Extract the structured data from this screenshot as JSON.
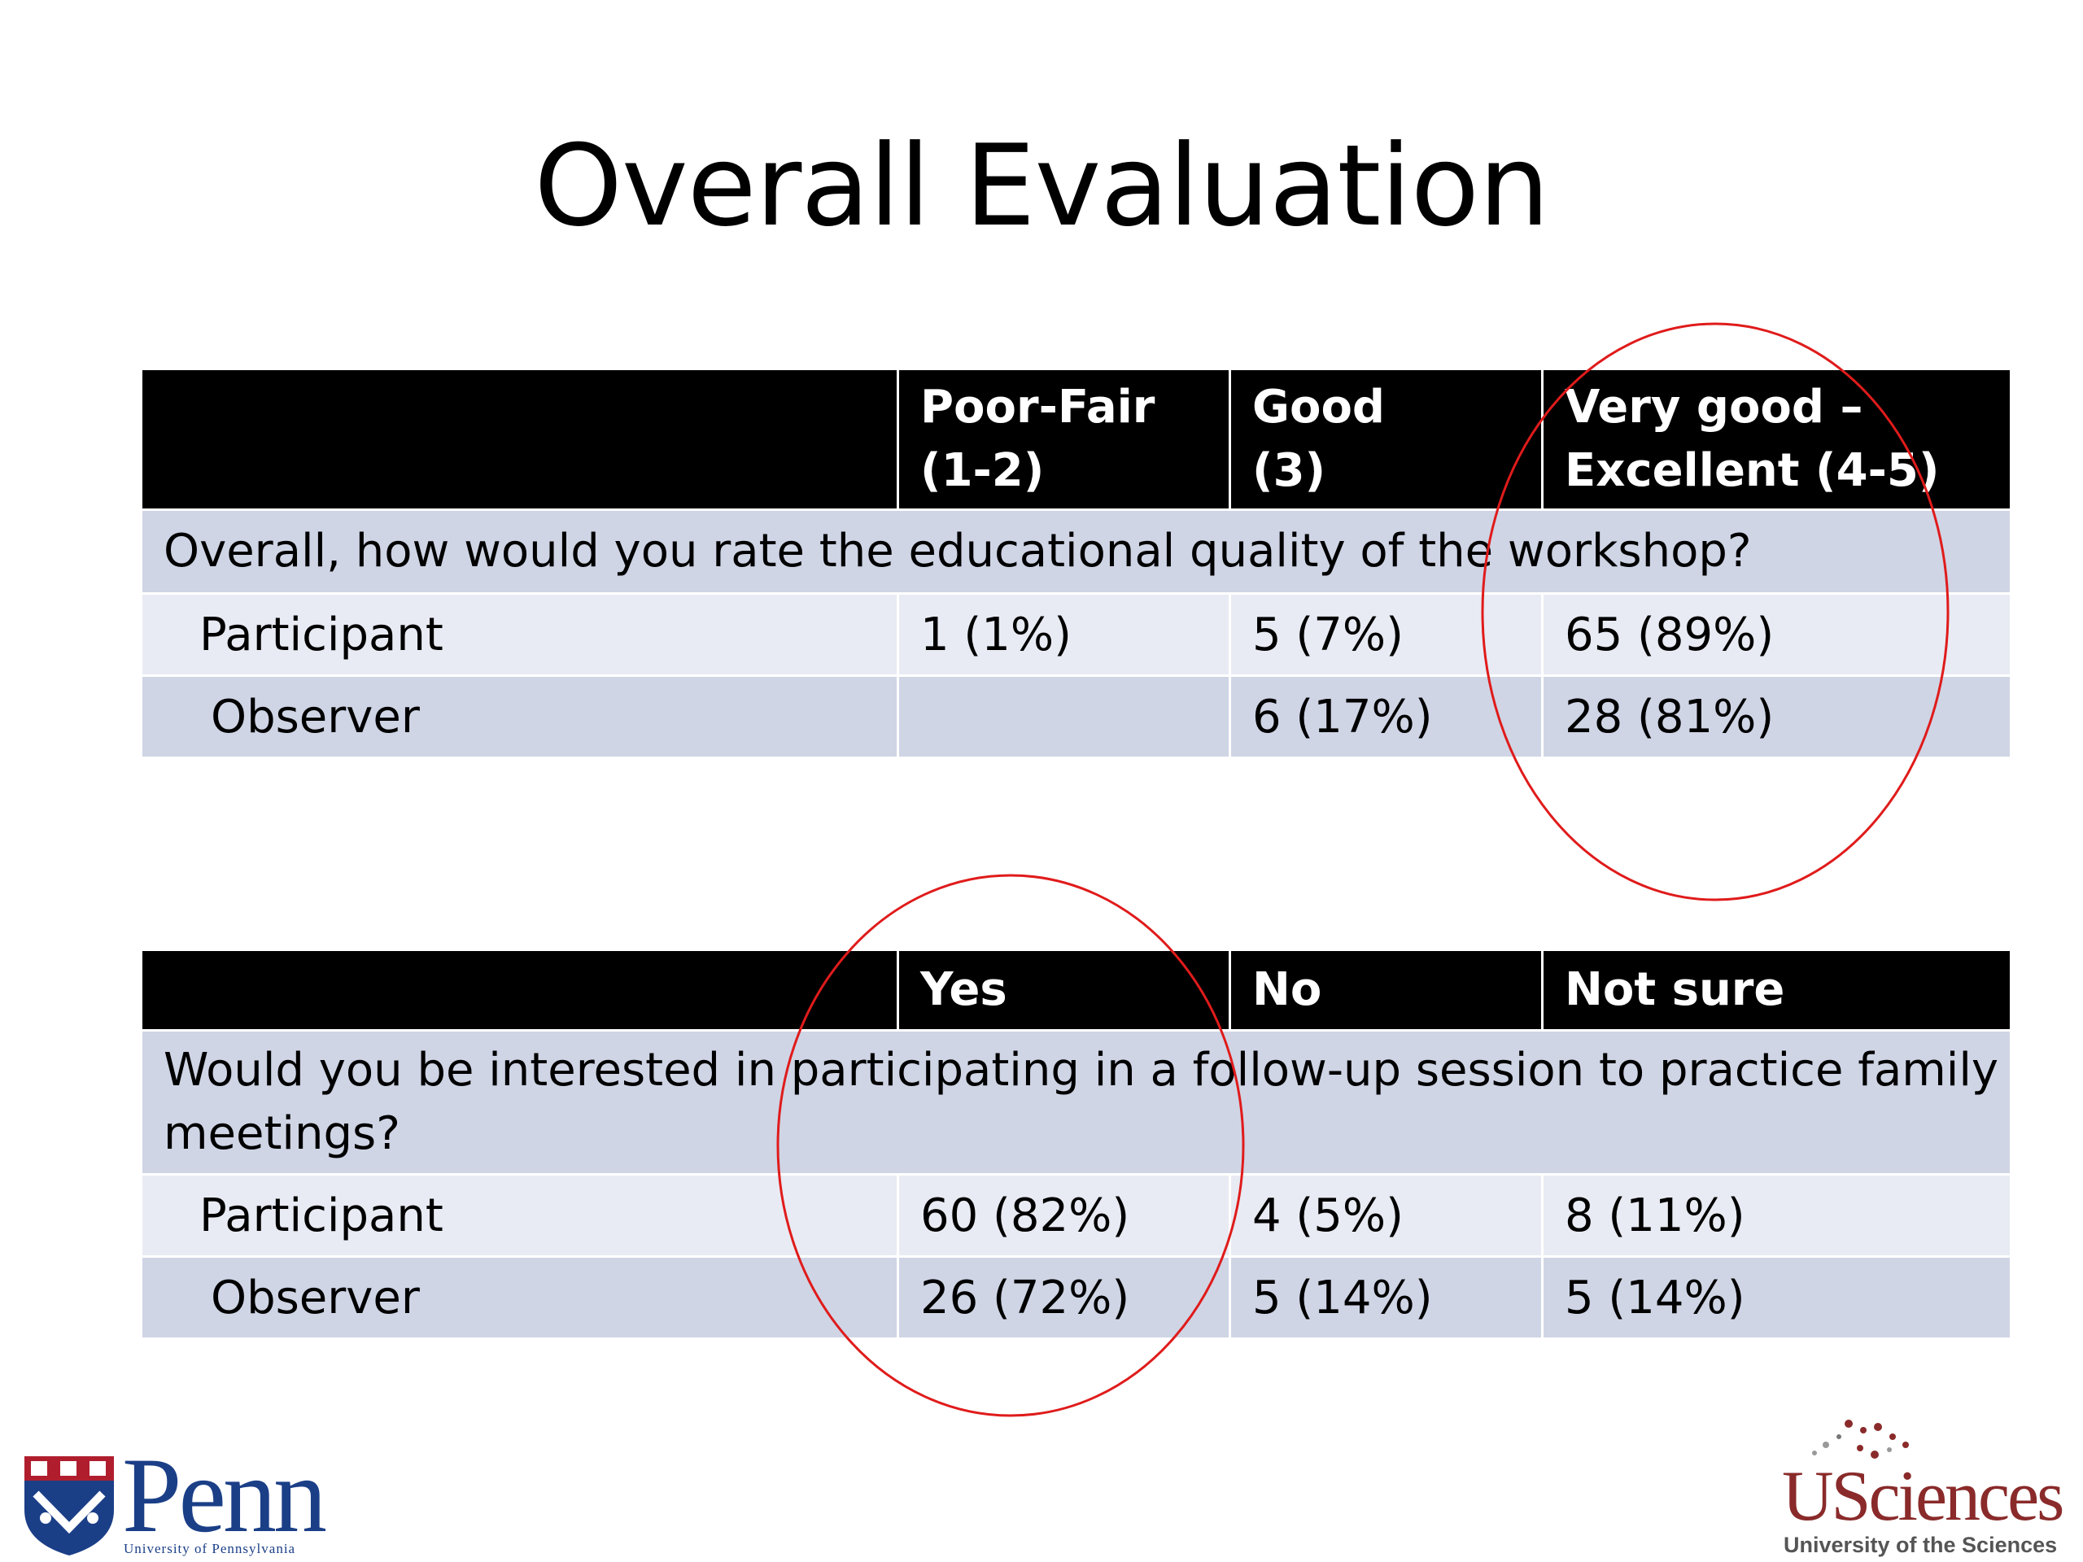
{
  "slide": {
    "title": "Overall Evaluation"
  },
  "table1": {
    "headers": [
      "",
      "Poor-Fair\n(1-2)",
      "Good\n(3)",
      "Very good –\nExcellent (4-5)"
    ],
    "header_lines": [
      [
        "",
        ""
      ],
      [
        "Poor-Fair",
        "(1-2)"
      ],
      [
        "Good",
        "(3)"
      ],
      [
        "Very good –",
        "Excellent (4-5)"
      ]
    ],
    "question": "Overall, how would you rate the educational quality of the workshop?",
    "rows": [
      {
        "label": "Participant",
        "values": [
          "1 (1%)",
          "5 (7%)",
          "65 (89%)"
        ]
      },
      {
        "label": "Observer",
        "values": [
          "",
          "6 (17%)",
          "28 (81%)"
        ]
      }
    ]
  },
  "table2": {
    "headers": [
      "",
      "Yes",
      "No",
      "Not sure"
    ],
    "question_lines": [
      "Would you be interested in participating in a follow-up session to practice family",
      "meetings?"
    ],
    "rows": [
      {
        "label": "Participant",
        "values": [
          "60 (82%)",
          "4 (5%)",
          "8 (11%)"
        ]
      },
      {
        "label": "Observer",
        "values": [
          "26 (72%)",
          "5 (14%)",
          "5 (14%)"
        ]
      }
    ]
  },
  "logos": {
    "penn": {
      "name": "Penn",
      "subtitle": "University of Pennsylvania"
    },
    "usciences": {
      "name": "USciences",
      "subtitle": "University of the Sciences"
    }
  },
  "colors": {
    "header_bg": "#000000",
    "band_dark": "#cfd5e5",
    "band_light": "#e8ebf3",
    "circle": "#e01b1b",
    "penn_blue": "#1b3f87",
    "usci_red": "#8a2a2a"
  }
}
